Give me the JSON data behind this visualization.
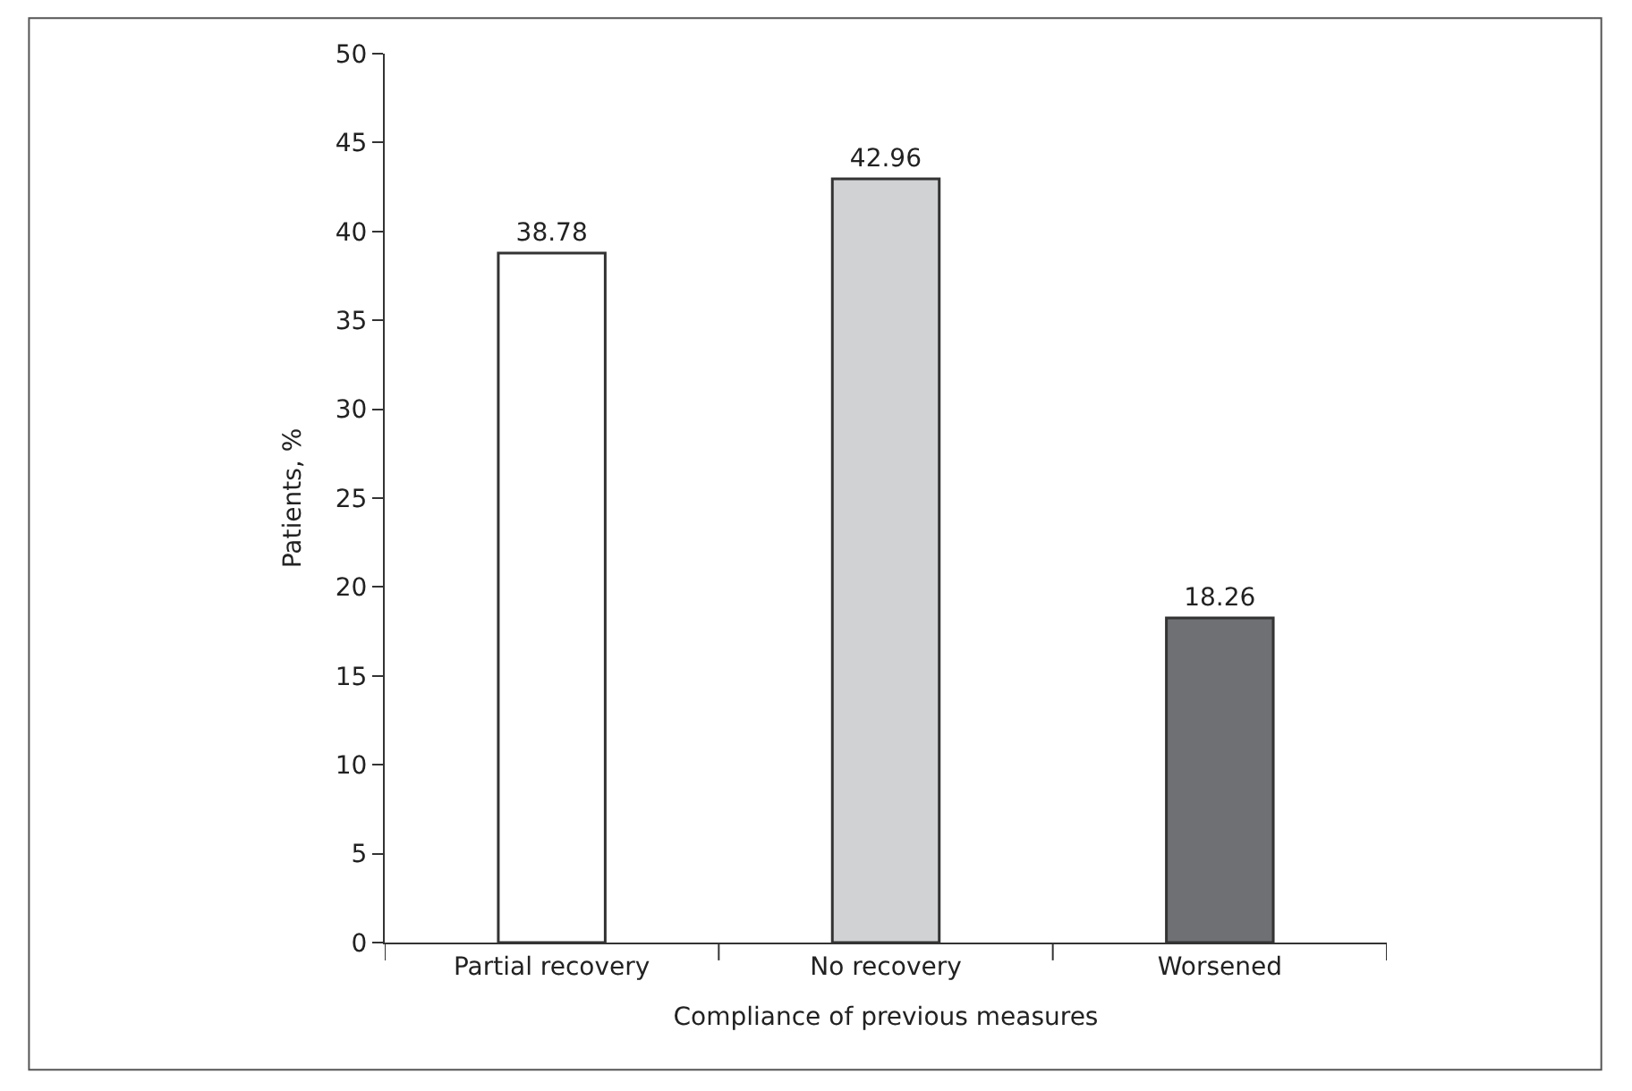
{
  "chart_data": {
    "type": "bar",
    "xlabel": "Compliance of previous measures",
    "ylabel": "Patients, %",
    "categories": [
      "Partial recovery",
      "No recovery",
      "Worsened"
    ],
    "values": [
      38.78,
      42.96,
      18.26
    ],
    "colors": [
      "#ffffff",
      "#d1d2d4",
      "#6f7073"
    ],
    "ylim": [
      0,
      50
    ],
    "yticks": [
      0,
      5,
      10,
      15,
      20,
      25,
      30,
      35,
      40,
      45,
      50
    ],
    "data_labels": true
  }
}
